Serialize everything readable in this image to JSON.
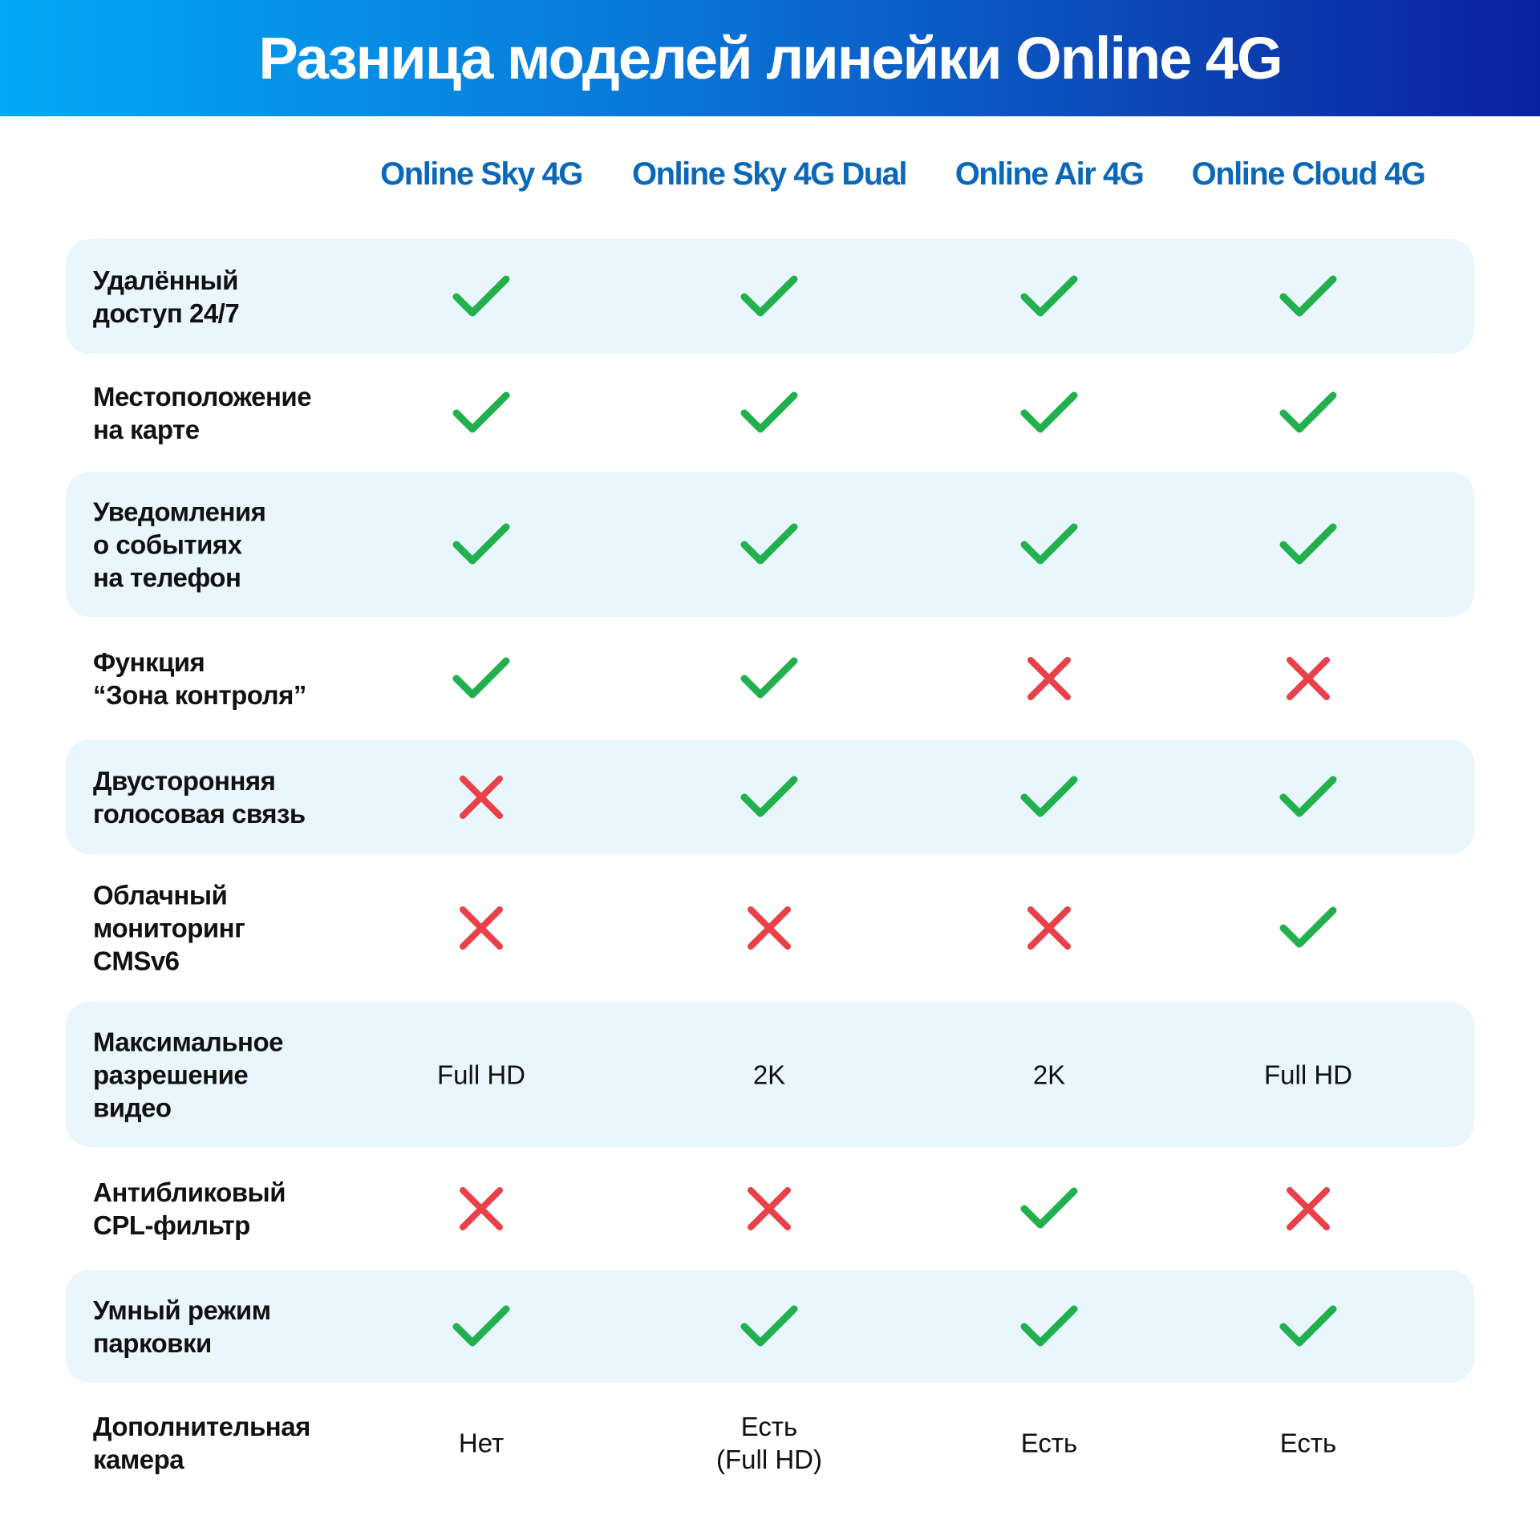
{
  "title": "Разница моделей линейки Online 4G",
  "colors": {
    "check": "#22b04e",
    "cross": "#e8414a",
    "header_text": "#0b67b8",
    "row_shade": "#eaf6fd"
  },
  "models": [
    "Online Sky 4G",
    "Online Sky 4G Dual",
    "Online Air 4G",
    "Online Cloud 4G"
  ],
  "rows": [
    {
      "feature": "Удалённый\nдоступ 24/7",
      "values": [
        "check",
        "check",
        "check",
        "check"
      ]
    },
    {
      "feature": "Местоположение\nна карте",
      "values": [
        "check",
        "check",
        "check",
        "check"
      ]
    },
    {
      "feature": "Уведомления\nо событиях\nна телефон",
      "values": [
        "check",
        "check",
        "check",
        "check"
      ]
    },
    {
      "feature": "Функция\n“Зона контроля”",
      "values": [
        "check",
        "check",
        "cross",
        "cross"
      ]
    },
    {
      "feature": "Двусторонняя\nголосовая связь",
      "values": [
        "cross",
        "check",
        "check",
        "check"
      ]
    },
    {
      "feature": "Облачный\nмониторинг\nCMSv6",
      "values": [
        "cross",
        "cross",
        "cross",
        "check"
      ]
    },
    {
      "feature": "Максимальное\nразрешение\nвидео",
      "values": [
        "Full HD",
        "2K",
        "2K",
        "Full HD"
      ]
    },
    {
      "feature": "Антибликовый\nCPL-фильтр",
      "values": [
        "cross",
        "cross",
        "check",
        "cross"
      ]
    },
    {
      "feature": "Умный режим\nпарковки",
      "values": [
        "check",
        "check",
        "check",
        "check"
      ]
    },
    {
      "feature": "Дополнительная\nкамера",
      "values": [
        "Нет",
        "Есть\n(Full HD)",
        "Есть",
        "Есть"
      ]
    }
  ]
}
